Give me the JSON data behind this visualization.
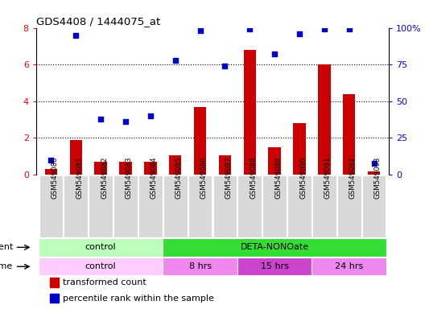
{
  "title": "GDS4408 / 1444075_at",
  "samples": [
    "GSM549080",
    "GSM549081",
    "GSM549082",
    "GSM549083",
    "GSM549084",
    "GSM549085",
    "GSM549086",
    "GSM549087",
    "GSM549088",
    "GSM549089",
    "GSM549090",
    "GSM549091",
    "GSM549092",
    "GSM549093"
  ],
  "transformed_count": [
    0.3,
    1.9,
    0.7,
    0.7,
    0.7,
    1.05,
    3.7,
    1.05,
    6.8,
    1.5,
    2.8,
    6.0,
    4.4,
    0.2
  ],
  "percentile_rank": [
    10,
    95,
    38,
    36,
    40,
    78,
    98,
    74,
    99,
    82,
    96,
    99,
    99,
    8
  ],
  "bar_color": "#cc0000",
  "dot_color": "#0000cc",
  "ylim_left": [
    0,
    8
  ],
  "ylim_right": [
    0,
    100
  ],
  "yticks_left": [
    0,
    2,
    4,
    6,
    8
  ],
  "yticks_right": [
    0,
    25,
    50,
    75,
    100
  ],
  "yticklabels_right": [
    "0",
    "25",
    "50",
    "75",
    "100%"
  ],
  "agent_row": [
    {
      "label": "control",
      "start": 0,
      "end": 5,
      "color": "#bbffbb"
    },
    {
      "label": "DETA-NONOate",
      "start": 5,
      "end": 14,
      "color": "#33dd33"
    }
  ],
  "time_row": [
    {
      "label": "control",
      "start": 0,
      "end": 5,
      "color": "#ffccff"
    },
    {
      "label": "8 hrs",
      "start": 5,
      "end": 8,
      "color": "#ee88ee"
    },
    {
      "label": "15 hrs",
      "start": 8,
      "end": 11,
      "color": "#cc44cc"
    },
    {
      "label": "24 hrs",
      "start": 11,
      "end": 14,
      "color": "#ee88ee"
    }
  ],
  "legend_items": [
    {
      "label": "transformed count",
      "color": "#cc0000"
    },
    {
      "label": "percentile rank within the sample",
      "color": "#0000cc"
    }
  ]
}
